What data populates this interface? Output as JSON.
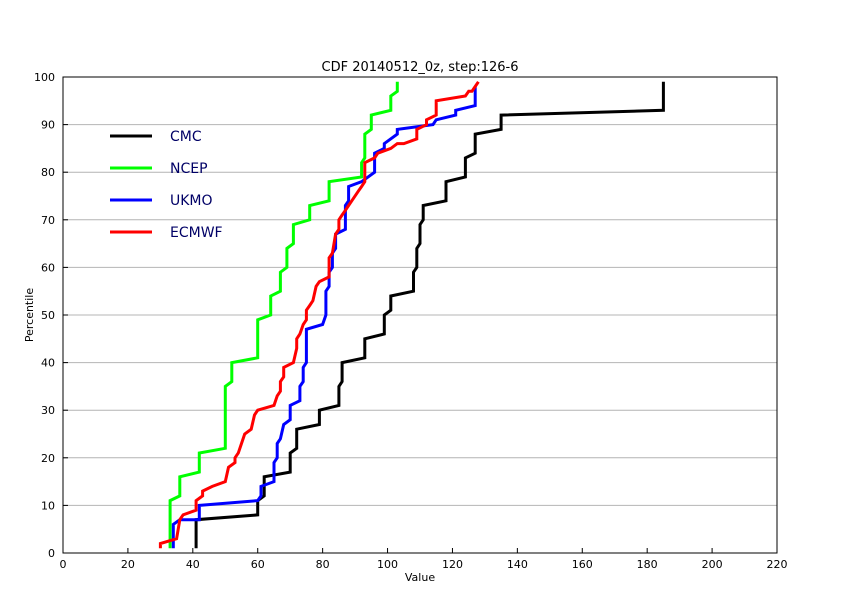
{
  "chart_data": {
    "type": "line",
    "title": "CDF 20140512_0z, step:126-6",
    "xlabel": "Value",
    "ylabel": "Percentile",
    "xlim": [
      0,
      220
    ],
    "ylim": [
      0,
      100
    ],
    "x_ticks": [
      0,
      20,
      40,
      60,
      80,
      100,
      120,
      140,
      160,
      180,
      200,
      220
    ],
    "y_ticks": [
      0,
      10,
      20,
      30,
      40,
      50,
      60,
      70,
      80,
      90,
      100
    ],
    "grid": "horizontal",
    "legend_position": "top-left",
    "series": [
      {
        "name": "CMC",
        "color": "#000000",
        "points": [
          [
            41,
            1
          ],
          [
            41,
            7
          ],
          [
            60,
            8
          ],
          [
            60,
            11
          ],
          [
            62,
            12
          ],
          [
            62,
            16
          ],
          [
            70,
            17
          ],
          [
            70,
            21
          ],
          [
            72,
            22
          ],
          [
            72,
            26
          ],
          [
            79,
            27
          ],
          [
            79,
            30
          ],
          [
            85,
            31
          ],
          [
            85,
            35
          ],
          [
            86,
            36
          ],
          [
            86,
            40
          ],
          [
            93,
            41
          ],
          [
            93,
            45
          ],
          [
            99,
            46
          ],
          [
            99,
            50
          ],
          [
            101,
            51
          ],
          [
            101,
            54
          ],
          [
            108,
            55
          ],
          [
            108,
            59
          ],
          [
            109,
            60
          ],
          [
            109,
            64
          ],
          [
            110,
            65
          ],
          [
            110,
            69
          ],
          [
            111,
            70
          ],
          [
            111,
            73
          ],
          [
            118,
            74
          ],
          [
            118,
            78
          ],
          [
            124,
            79
          ],
          [
            124,
            83
          ],
          [
            127,
            84
          ],
          [
            127,
            88
          ],
          [
            135,
            89
          ],
          [
            135,
            92
          ],
          [
            185,
            93
          ],
          [
            185,
            99
          ]
        ]
      },
      {
        "name": "NCEP",
        "color": "#00ff00",
        "points": [
          [
            33,
            1
          ],
          [
            33,
            11
          ],
          [
            36,
            12
          ],
          [
            36,
            16
          ],
          [
            42,
            17
          ],
          [
            42,
            21
          ],
          [
            50,
            22
          ],
          [
            50,
            35
          ],
          [
            52,
            36
          ],
          [
            52,
            40
          ],
          [
            60,
            41
          ],
          [
            60,
            49
          ],
          [
            64,
            50
          ],
          [
            64,
            54
          ],
          [
            67,
            55
          ],
          [
            67,
            59
          ],
          [
            69,
            60
          ],
          [
            69,
            64
          ],
          [
            71,
            65
          ],
          [
            71,
            69
          ],
          [
            76,
            70
          ],
          [
            76,
            73
          ],
          [
            82,
            74
          ],
          [
            82,
            78
          ],
          [
            92,
            79
          ],
          [
            92,
            82
          ],
          [
            93,
            83
          ],
          [
            93,
            88
          ],
          [
            95,
            89
          ],
          [
            95,
            92
          ],
          [
            101,
            93
          ],
          [
            101,
            96
          ],
          [
            103,
            97
          ],
          [
            103,
            99
          ]
        ]
      },
      {
        "name": "UKMO",
        "color": "#0000ff",
        "points": [
          [
            34,
            1
          ],
          [
            34,
            6
          ],
          [
            36,
            7
          ],
          [
            42,
            7
          ],
          [
            42,
            10
          ],
          [
            60,
            11
          ],
          [
            61,
            12
          ],
          [
            61,
            14
          ],
          [
            65,
            15
          ],
          [
            65,
            19
          ],
          [
            66,
            20
          ],
          [
            66,
            23
          ],
          [
            67,
            24
          ],
          [
            68,
            27
          ],
          [
            70,
            28
          ],
          [
            70,
            31
          ],
          [
            73,
            32
          ],
          [
            73,
            35
          ],
          [
            74,
            36
          ],
          [
            74,
            39
          ],
          [
            75,
            40
          ],
          [
            75,
            47
          ],
          [
            80,
            48
          ],
          [
            81,
            50
          ],
          [
            81,
            55
          ],
          [
            82,
            56
          ],
          [
            82,
            59
          ],
          [
            83,
            60
          ],
          [
            83,
            63
          ],
          [
            84,
            64
          ],
          [
            84,
            67
          ],
          [
            87,
            68
          ],
          [
            87,
            73
          ],
          [
            88,
            74
          ],
          [
            88,
            77
          ],
          [
            92,
            78
          ],
          [
            96,
            80
          ],
          [
            96,
            84
          ],
          [
            99,
            85
          ],
          [
            99,
            86
          ],
          [
            103,
            88
          ],
          [
            103,
            89
          ],
          [
            114,
            90
          ],
          [
            115,
            91
          ],
          [
            121,
            92
          ],
          [
            121,
            93
          ],
          [
            127,
            94
          ],
          [
            127,
            98
          ]
        ]
      },
      {
        "name": "ECMWF",
        "color": "#ff0000",
        "points": [
          [
            30,
            1
          ],
          [
            30,
            2
          ],
          [
            35,
            3
          ],
          [
            36,
            7
          ],
          [
            37,
            8
          ],
          [
            41,
            9
          ],
          [
            41,
            11
          ],
          [
            43,
            12
          ],
          [
            43,
            13
          ],
          [
            46,
            14
          ],
          [
            50,
            15
          ],
          [
            51,
            18
          ],
          [
            53,
            19
          ],
          [
            53,
            20
          ],
          [
            54,
            21
          ],
          [
            55,
            23
          ],
          [
            56,
            25
          ],
          [
            58,
            26
          ],
          [
            59,
            29
          ],
          [
            60,
            30
          ],
          [
            65,
            31
          ],
          [
            66,
            33
          ],
          [
            67,
            34
          ],
          [
            67,
            36
          ],
          [
            68,
            37
          ],
          [
            68,
            39
          ],
          [
            71,
            40
          ],
          [
            72,
            43
          ],
          [
            72,
            45
          ],
          [
            73,
            46
          ],
          [
            74,
            48
          ],
          [
            75,
            49
          ],
          [
            75,
            51
          ],
          [
            76,
            52
          ],
          [
            77,
            53
          ],
          [
            78,
            56
          ],
          [
            79,
            57
          ],
          [
            82,
            58
          ],
          [
            82,
            62
          ],
          [
            83,
            63
          ],
          [
            84,
            67
          ],
          [
            85,
            68
          ],
          [
            85,
            70
          ],
          [
            86,
            71
          ],
          [
            87,
            72
          ],
          [
            88,
            73
          ],
          [
            89,
            74
          ],
          [
            91,
            76
          ],
          [
            92,
            77
          ],
          [
            93,
            78
          ],
          [
            93,
            82
          ],
          [
            96,
            83
          ],
          [
            97,
            84
          ],
          [
            101,
            85
          ],
          [
            103,
            86
          ],
          [
            105,
            86
          ],
          [
            109,
            87
          ],
          [
            109,
            89
          ],
          [
            112,
            90
          ],
          [
            112,
            91
          ],
          [
            115,
            92
          ],
          [
            115,
            95
          ],
          [
            124,
            96
          ],
          [
            125,
            97
          ],
          [
            126,
            97
          ],
          [
            127,
            98
          ],
          [
            128,
            99
          ]
        ]
      }
    ]
  }
}
